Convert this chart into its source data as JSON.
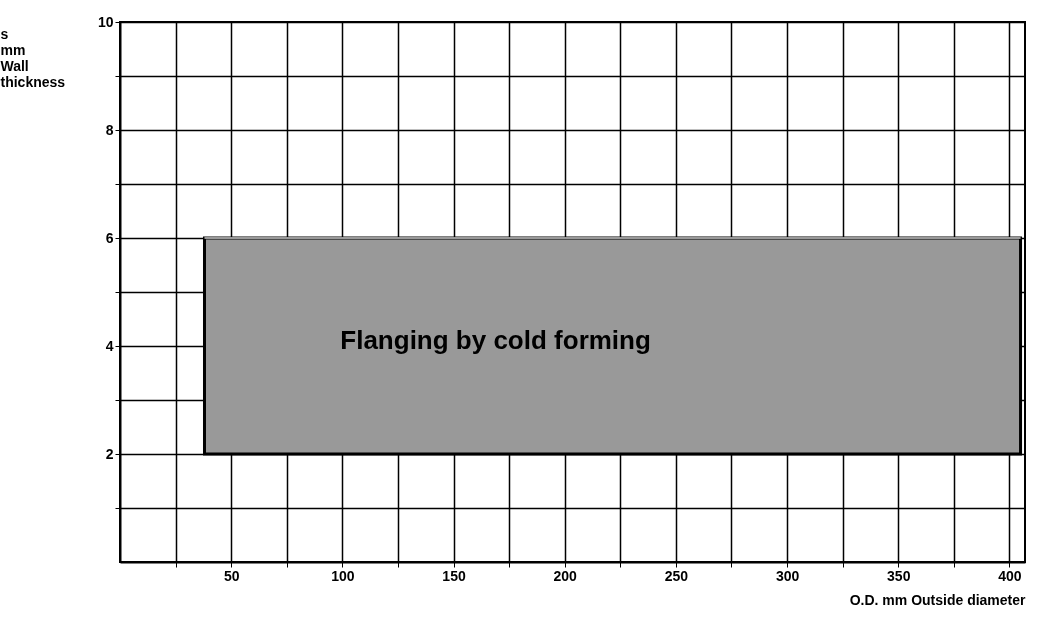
{
  "chart_data": {
    "type": "line",
    "xlabel": "O.D. mm Outside diameter",
    "ylabel": "s mm Wall thickness",
    "xlim": [
      0,
      407
    ],
    "ylim": [
      0,
      10
    ],
    "xticks": [
      {
        "value": 25,
        "label": null
      },
      50,
      {
        "value": 75,
        "label": null
      },
      100,
      {
        "value": 125,
        "label": null
      },
      150,
      {
        "value": 175,
        "label": null
      },
      200,
      {
        "value": 225,
        "label": null
      },
      250,
      {
        "value": 275,
        "label": null
      },
      300,
      {
        "value": 325,
        "label": null
      },
      350,
      {
        "value": 375,
        "label": null
      },
      400
    ],
    "yticks": [
      {
        "value": 1,
        "label": null
      },
      2,
      {
        "value": 3,
        "label": null
      },
      4,
      {
        "value": 5,
        "label": null
      },
      6,
      {
        "value": 7,
        "label": null
      },
      8,
      {
        "value": 9,
        "label": null
      },
      10
    ],
    "grid": true,
    "series": [
      {
        "color": "#999999",
        "x": [
          38,
          405
        ],
        "values": [
          6,
          6
        ],
        "lower": [
          2,
          2
        ],
        "upper": [
          6,
          6
        ]
      }
    ],
    "annotations": [
      "Flanging by cold  forming"
    ]
  }
}
